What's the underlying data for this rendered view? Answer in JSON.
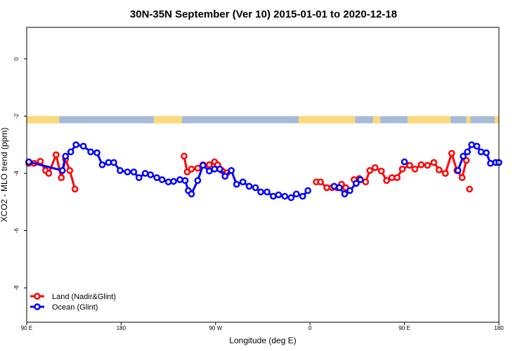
{
  "chart_data": {
    "type": "line",
    "title": "30N-35N September (Ver 10)   2015-01-01 to 2020-12-18",
    "xlabel": "Longitude (deg E)",
    "ylabel": "XCO2 - MLO trend (ppm)",
    "xlim": [
      90,
      540
    ],
    "ylim": [
      -9.2,
      1.1
    ],
    "x_ticks": [
      {
        "value": 90,
        "label": "90 E"
      },
      {
        "value": 180,
        "label": "180"
      },
      {
        "value": 270,
        "label": "90 W"
      },
      {
        "value": 360,
        "label": "0"
      },
      {
        "value": 450,
        "label": "90 E"
      },
      {
        "value": 540,
        "label": "180"
      }
    ],
    "y_ticks": [
      {
        "value": 0,
        "label": "0"
      },
      {
        "value": -2,
        "label": "-2"
      },
      {
        "value": -4,
        "label": "-4"
      },
      {
        "value": -6,
        "label": "-6"
      },
      {
        "value": -8,
        "label": "-8"
      }
    ],
    "surface_strip": {
      "y_range": [
        -2.25,
        -2.0
      ],
      "ocean_color": "#a7bbd9",
      "land_color": "#fcd97b",
      "land_segments": [
        [
          90,
          121
        ],
        [
          211,
          238
        ],
        [
          349,
          403
        ],
        [
          420,
          427
        ],
        [
          453,
          494
        ],
        [
          509,
          513
        ],
        [
          536,
          540
        ]
      ]
    },
    "series": [
      {
        "name": "Land (Nadir&Glint)",
        "color": "#ff0000",
        "segments": [
          {
            "x": [
              92,
              97,
              103,
              108,
              111,
              118,
              123,
              127,
              131,
              136
            ],
            "y": [
              -3.65,
              -3.65,
              -3.58,
              -3.9,
              -4.0,
              -3.35,
              -4.15,
              -3.5,
              -3.9,
              -4.55
            ]
          },
          {
            "x": [
              240,
              243,
              247,
              253,
              258,
              264,
              269,
              272,
              276,
              281
            ],
            "y": [
              -3.4,
              -3.95,
              -3.85,
              -3.82,
              -3.7,
              -3.7,
              -3.6,
              -3.7,
              -3.9,
              -3.98
            ]
          },
          {
            "x": [
              366,
              370,
              376,
              381,
              386,
              390,
              394
            ],
            "y": [
              -4.3,
              -4.3,
              -4.5,
              -4.5,
              -4.5,
              -4.38,
              -4.5
            ]
          },
          {
            "x": [
              402,
              407,
              413,
              417,
              422,
              428,
              433,
              438,
              443,
              448,
              455,
              460,
              466,
              472,
              478,
              483,
              489,
              495,
              500,
              505,
              509
            ],
            "y": [
              -4.22,
              -4.18,
              -4.3,
              -3.9,
              -3.8,
              -3.92,
              -4.25,
              -4.15,
              -4.15,
              -3.85,
              -3.72,
              -3.85,
              -3.7,
              -3.72,
              -3.62,
              -3.88,
              -4.0,
              -3.3,
              -3.9,
              -4.15,
              -3.55
            ]
          },
          {
            "x": [
              512
            ],
            "y": [
              -4.55
            ]
          }
        ]
      },
      {
        "name": "Ocean (Glint)",
        "color": "#0000ff",
        "segments": [
          {
            "x": [
              92,
              124,
              127,
              132,
              137,
              144,
              151,
              157,
              162,
              168,
              173,
              179,
              186,
              192,
              197,
              203,
              208,
              214,
              219,
              225,
              230,
              236,
              241,
              244,
              247,
              253,
              258,
              264,
              269,
              274,
              279,
              285,
              290,
              296,
              302,
              308,
              313,
              319,
              325,
              330,
              336,
              342,
              347,
              353,
              358
            ],
            "y": [
              -3.6,
              -3.9,
              -3.4,
              -3.25,
              -3.0,
              -3.05,
              -3.25,
              -3.28,
              -3.7,
              -3.62,
              -3.62,
              -3.9,
              -3.95,
              -3.95,
              -4.15,
              -4.0,
              -4.05,
              -4.15,
              -4.22,
              -4.3,
              -4.28,
              -4.22,
              -4.25,
              -4.6,
              -4.72,
              -4.25,
              -3.72,
              -3.92,
              -3.85,
              -3.85,
              -4.1,
              -3.9,
              -4.38,
              -4.3,
              -4.45,
              -4.5,
              -4.65,
              -4.65,
              -4.8,
              -4.75,
              -4.8,
              -4.85,
              -4.72,
              -4.8,
              -4.6
            ]
          },
          {
            "x": [
              383,
              388,
              393,
              398,
              404,
              408
            ],
            "y": [
              -4.45,
              -4.5,
              -4.72,
              -4.6,
              -4.35,
              -4.22
            ]
          },
          {
            "x": [
              450
            ],
            "y": [
              -3.6
            ]
          },
          {
            "x": [
              501,
              506,
              510,
              514,
              519,
              523,
              528,
              532,
              537,
              540
            ],
            "y": [
              -3.9,
              -3.4,
              -3.25,
              -3.0,
              -3.05,
              -3.25,
              -3.28,
              -3.65,
              -3.62,
              -3.62
            ]
          }
        ]
      }
    ],
    "legend": {
      "position": "bottom-left",
      "entries": [
        "Land (Nadir&Glint)",
        "Ocean (Glint)"
      ]
    }
  }
}
